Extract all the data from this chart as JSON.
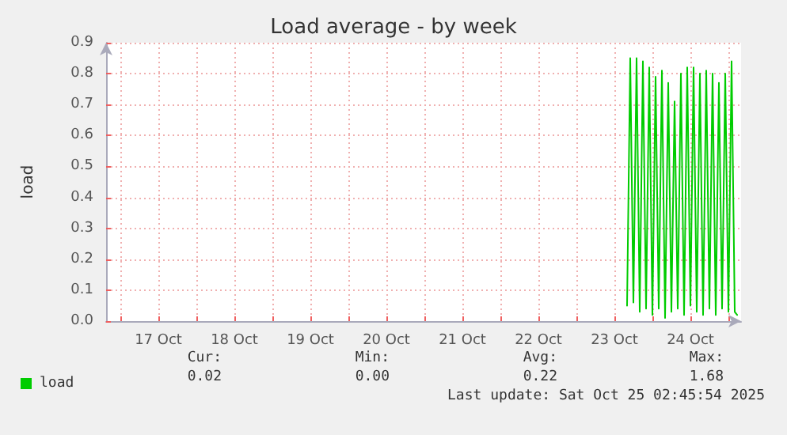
{
  "chart_data": {
    "type": "line",
    "title": "Load average - by week",
    "ylabel": "load",
    "x": [
      "2025-10-23T16:00",
      "2025-10-23T17:00",
      "2025-10-23T18:00",
      "2025-10-23T19:00",
      "2025-10-23T20:00",
      "2025-10-23T21:00",
      "2025-10-23T22:00",
      "2025-10-23T23:00",
      "2025-10-24T00:00",
      "2025-10-24T01:00",
      "2025-10-24T02:00",
      "2025-10-24T03:00",
      "2025-10-24T04:00",
      "2025-10-24T05:00",
      "2025-10-24T06:00",
      "2025-10-24T07:00",
      "2025-10-24T08:00",
      "2025-10-24T09:00",
      "2025-10-24T10:00",
      "2025-10-24T11:00",
      "2025-10-24T12:00",
      "2025-10-24T13:00",
      "2025-10-24T14:00",
      "2025-10-24T15:00",
      "2025-10-24T16:00",
      "2025-10-24T17:00",
      "2025-10-24T18:00",
      "2025-10-24T19:00",
      "2025-10-24T20:00",
      "2025-10-24T21:00",
      "2025-10-24T22:00",
      "2025-10-24T23:00",
      "2025-10-25T00:00",
      "2025-10-25T01:00",
      "2025-10-25T02:00",
      "2025-10-25T02:45"
    ],
    "series": [
      {
        "name": "load",
        "color": "#00cc00",
        "values": [
          0.05,
          0.85,
          0.06,
          0.85,
          0.03,
          0.84,
          0.04,
          0.82,
          0.02,
          0.79,
          0.04,
          0.81,
          0.01,
          0.77,
          0.03,
          0.71,
          0.04,
          0.8,
          0.02,
          0.82,
          0.05,
          0.82,
          0.03,
          0.8,
          0.02,
          0.81,
          0.04,
          0.8,
          0.02,
          0.77,
          0.04,
          0.8,
          0.03,
          0.84,
          0.03,
          0.02
        ]
      }
    ],
    "xlim": [
      "2025-10-16T19:30",
      "2025-10-25T04:00"
    ],
    "xticks": [
      {
        "value": "2025-10-17T00:00",
        "label": null
      },
      {
        "value": "2025-10-17T12:00",
        "label": "17 Oct"
      },
      {
        "value": "2025-10-18T00:00",
        "label": null
      },
      {
        "value": "2025-10-18T12:00",
        "label": "18 Oct"
      },
      {
        "value": "2025-10-19T00:00",
        "label": null
      },
      {
        "value": "2025-10-19T12:00",
        "label": "19 Oct"
      },
      {
        "value": "2025-10-20T00:00",
        "label": null
      },
      {
        "value": "2025-10-20T12:00",
        "label": "20 Oct"
      },
      {
        "value": "2025-10-21T00:00",
        "label": null
      },
      {
        "value": "2025-10-21T12:00",
        "label": "21 Oct"
      },
      {
        "value": "2025-10-22T00:00",
        "label": null
      },
      {
        "value": "2025-10-22T12:00",
        "label": "22 Oct"
      },
      {
        "value": "2025-10-23T00:00",
        "label": null
      },
      {
        "value": "2025-10-23T12:00",
        "label": "23 Oct"
      },
      {
        "value": "2025-10-24T00:00",
        "label": null
      },
      {
        "value": "2025-10-24T12:00",
        "label": "24 Oct"
      },
      {
        "value": "2025-10-25T00:00",
        "label": null
      }
    ],
    "ylim": [
      0,
      0.9
    ],
    "yticks": [
      {
        "value": 0,
        "label": "0.0"
      },
      {
        "value": 0.1,
        "label": "0.1"
      },
      {
        "value": 0.2,
        "label": "0.2"
      },
      {
        "value": 0.3,
        "label": "0.3"
      },
      {
        "value": 0.4,
        "label": "0.4"
      },
      {
        "value": 0.5,
        "label": "0.5"
      },
      {
        "value": 0.6,
        "label": "0.6"
      },
      {
        "value": 0.7,
        "label": "0.7"
      },
      {
        "value": 0.8,
        "label": "0.8"
      },
      {
        "value": 0.9,
        "label": "0.9"
      }
    ],
    "grid": true,
    "legend": "bottom left",
    "marker": "none",
    "line_style": "solid",
    "annotations": [
      "Cur:",
      "Min:",
      "Avg:",
      "Max:",
      "0.02",
      "0.00",
      "0.22",
      "1.68",
      "Last update: Sat Oct 25 02:45:54 2025"
    ]
  }
}
